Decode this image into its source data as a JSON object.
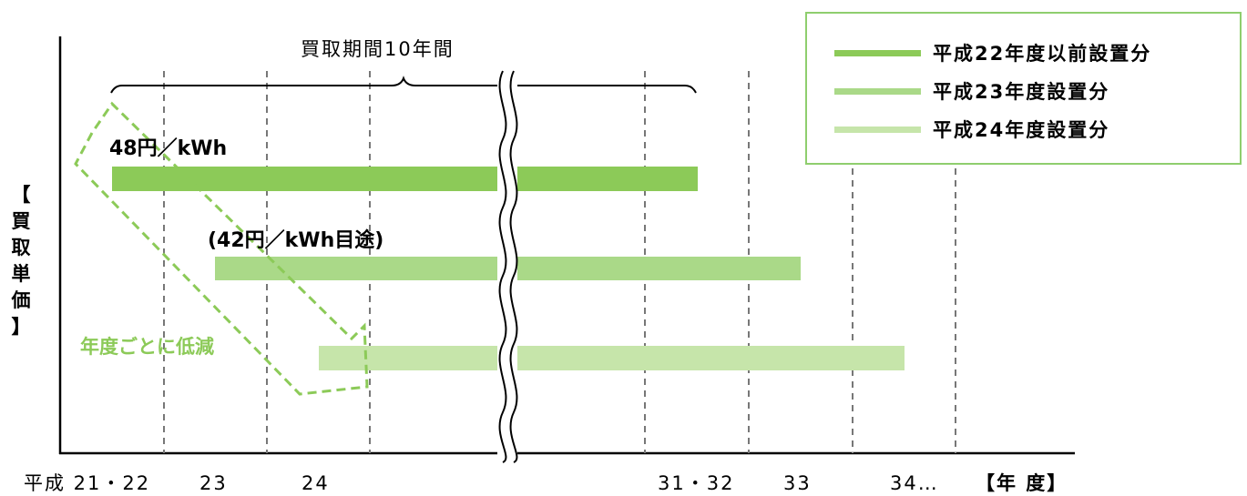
{
  "colors": {
    "series1": "#8cca58",
    "series2": "#aad988",
    "series3": "#c6e5aa",
    "dashed_arrow": "#8cca58",
    "annotation_text": "#8cca58",
    "grid": "#777777",
    "axis": "#000000",
    "legend_border": "#8fce6e"
  },
  "y_axis_label": "【買取単価】",
  "x_axis_unit": "【年 度】",
  "x_ticks": [
    "平成 21・22",
    "23",
    "24",
    "31・32",
    "33",
    "34…"
  ],
  "period_brace_label": "買取期間10年間",
  "legend": [
    {
      "label": "平成22年度以前設置分",
      "color_key": "series1"
    },
    {
      "label": "平成23年度設置分",
      "color_key": "series2"
    },
    {
      "label": "平成24年度設置分",
      "color_key": "series3"
    }
  ],
  "bars": [
    {
      "legend_index": 0,
      "price_label": "48円／kWh",
      "start": "平成21・22",
      "end": "31・32"
    },
    {
      "legend_index": 1,
      "price_label": "(42円／kWh目途)",
      "start": "23",
      "end": "33"
    },
    {
      "legend_index": 2,
      "price_label": "",
      "start": "24",
      "end": "34…"
    }
  ],
  "decrease_annotation": "年度ごとに低減"
}
